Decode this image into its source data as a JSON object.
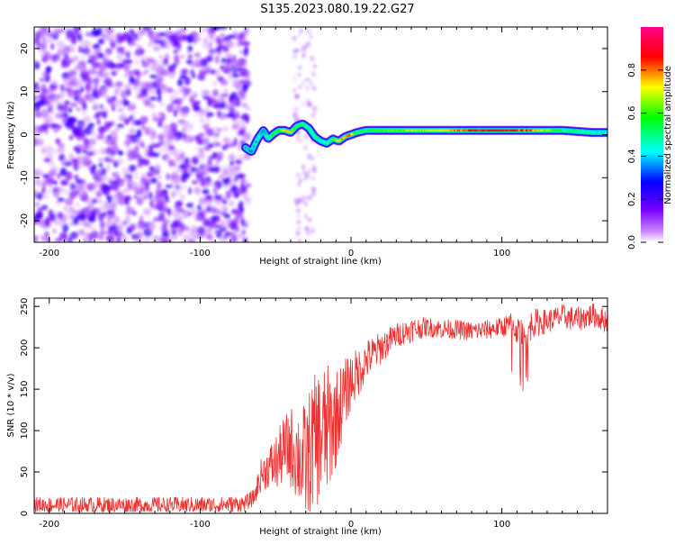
{
  "title": "S135.2023.080.19.22.G27",
  "chart_data": [
    {
      "type": "heatmap",
      "xlabel": "Height of straight line (km)",
      "ylabel": "Frequency (Hz)",
      "xlim": [
        -210,
        170
      ],
      "ylim": [
        -25,
        25
      ],
      "x_ticks": [
        -200,
        -100,
        0,
        100
      ],
      "y_ticks": [
        -20,
        -10,
        0,
        10,
        20
      ],
      "colorbar": {
        "label": "Normalized spectral amplitude",
        "range": [
          0,
          1
        ],
        "ticks": [
          0.0,
          0.2,
          0.4,
          0.6,
          0.8
        ],
        "colors": [
          "#ffffff",
          "#cc88ff",
          "#7700ff",
          "#0000ff",
          "#00ffff",
          "#00ff00",
          "#ffff00",
          "#ff0000",
          "#ff0088"
        ]
      },
      "noise_region": {
        "x_range": [
          -210,
          -68
        ],
        "freq_range": [
          -25,
          25
        ],
        "amplitude_range": [
          0.0,
          0.2
        ]
      },
      "sparse_noise_columns": [
        {
          "x_range": [
            -38,
            -24
          ],
          "freq_range": [
            -25,
            25
          ],
          "amplitude_range": [
            0.0,
            0.08
          ]
        }
      ],
      "signal_ridge": {
        "x": [
          -70,
          -66,
          -62,
          -58,
          -55,
          -52,
          -48,
          -44,
          -40,
          -36,
          -32,
          -28,
          -24,
          -20,
          -16,
          -12,
          -8,
          -4,
          0,
          4,
          10,
          20,
          40,
          60,
          80,
          100,
          120,
          140,
          160,
          170
        ],
        "frequency": [
          -3,
          -4,
          -1,
          1,
          -1,
          0,
          1,
          1,
          0.5,
          2,
          2.5,
          1.5,
          -0.5,
          -1.5,
          -2,
          -1,
          -1.5,
          -0.5,
          0,
          0.5,
          1,
          1,
          1,
          1,
          1,
          1,
          1,
          1,
          0.5,
          0.5
        ],
        "amplitude": [
          0.35,
          0.4,
          0.4,
          0.4,
          0.4,
          0.5,
          0.55,
          0.7,
          0.75,
          0.5,
          0.5,
          0.45,
          0.45,
          0.45,
          0.45,
          0.5,
          0.7,
          0.75,
          0.8,
          0.55,
          0.5,
          0.6,
          0.65,
          0.7,
          0.85,
          0.9,
          0.8,
          0.5,
          0.45,
          0.45
        ]
      }
    },
    {
      "type": "line",
      "xlabel": "Height of straight line (km)",
      "ylabel": "SNR (10 * v/v)",
      "xlim": [
        -210,
        170
      ],
      "ylim": [
        0,
        260
      ],
      "x_ticks": [
        -200,
        -100,
        0,
        100
      ],
      "y_ticks": [
        0,
        50,
        100,
        150,
        200,
        250
      ],
      "series": [
        {
          "color": "#ee3030",
          "x": [
            -210,
            -180,
            -150,
            -120,
            -90,
            -70,
            -64,
            -60,
            -55,
            -50,
            -45,
            -40,
            -35,
            -30,
            -25,
            -20,
            -15,
            -10,
            -5,
            0,
            5,
            10,
            20,
            30,
            40,
            50,
            60,
            70,
            80,
            90,
            100,
            105,
            110,
            115,
            120,
            130,
            140,
            150,
            160,
            170
          ],
          "y": [
            10,
            10,
            10,
            10,
            10,
            12,
            20,
            45,
            55,
            60,
            75,
            80,
            70,
            60,
            85,
            95,
            100,
            115,
            140,
            160,
            170,
            185,
            200,
            215,
            222,
            225,
            223,
            222,
            220,
            222,
            225,
            228,
            222,
            210,
            230,
            232,
            238,
            234,
            240,
            232
          ],
          "noise_amplitude": [
            10,
            10,
            10,
            10,
            10,
            10,
            10,
            20,
            25,
            35,
            40,
            50,
            60,
            75,
            80,
            85,
            80,
            60,
            45,
            35,
            30,
            25,
            20,
            15,
            15,
            12,
            12,
            12,
            12,
            12,
            12,
            15,
            18,
            20,
            18,
            15,
            15,
            15,
            15,
            15
          ]
        }
      ]
    }
  ]
}
